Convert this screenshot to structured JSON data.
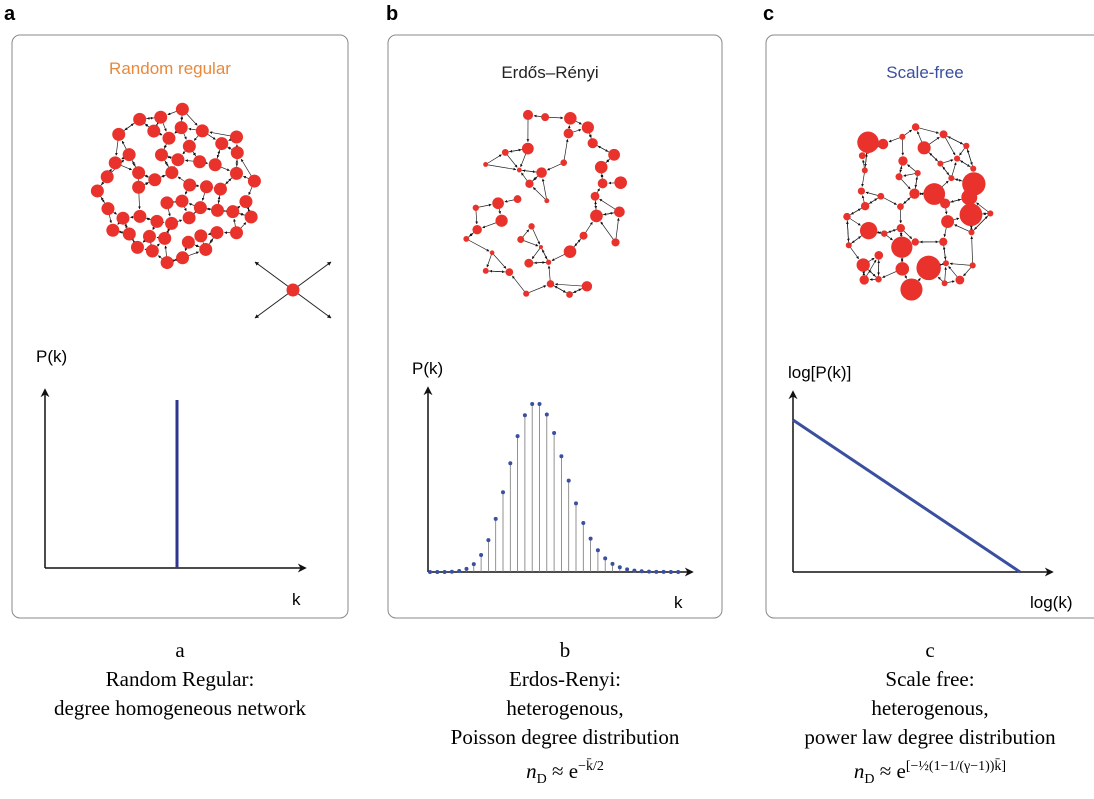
{
  "panels": [
    {
      "letter": "a",
      "title": "Random regular",
      "y_label": "P(k)",
      "x_label": "k"
    },
    {
      "letter": "b",
      "title": "Erdős–Rényi",
      "y_label": "P(k)",
      "x_label": "k"
    },
    {
      "letter": "c",
      "title": "Scale-free",
      "y_label": "log[P(k)]",
      "x_label": "log(k)"
    }
  ],
  "captions": [
    {
      "letter": "a",
      "lines": [
        "Random Regular:",
        "degree homogeneous network"
      ]
    },
    {
      "letter": "b",
      "lines": [
        "Erdos-Renyi:",
        "heterogenous,",
        "Poisson degree distribution"
      ],
      "formula": {
        "base": "n",
        "sub": "D",
        "rel": "≈ e",
        "exp": "−k̄/2"
      }
    },
    {
      "letter": "c",
      "lines": [
        "Scale free:",
        "heterogenous,",
        "power law degree distribution"
      ],
      "formula": {
        "base": "n",
        "sub": "D",
        "rel": "≈ e",
        "exp": "[−½(1−1/(γ−1))k̄]"
      }
    }
  ]
}
